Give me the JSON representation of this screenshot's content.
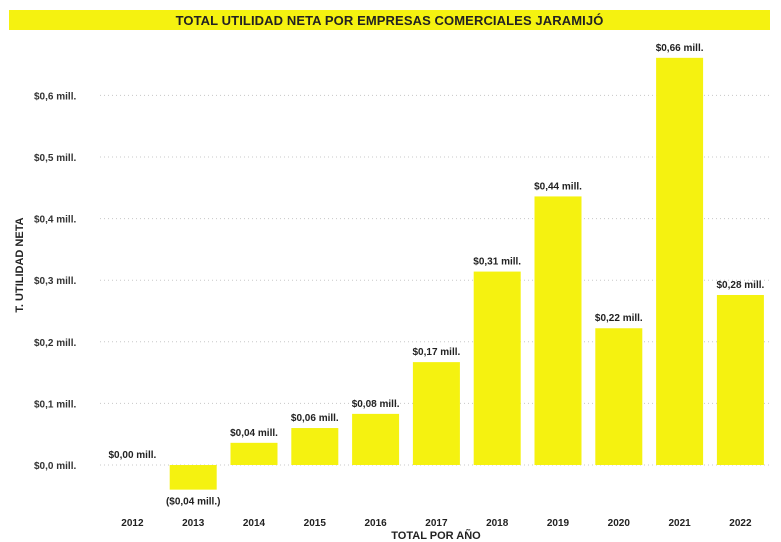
{
  "chart_data": {
    "type": "bar",
    "title": "TOTAL UTILIDAD NETA POR EMPRESAS COMERCIALES JARAMIJÓ",
    "xlabel": "TOTAL POR AÑO",
    "ylabel": "T. UTILIDAD NETA",
    "categories": [
      "2012",
      "2013",
      "2014",
      "2015",
      "2016",
      "2017",
      "2018",
      "2019",
      "2020",
      "2021",
      "2022"
    ],
    "values": [
      0.0,
      -0.04,
      0.036,
      0.06,
      0.083,
      0.167,
      0.314,
      0.436,
      0.222,
      0.661,
      0.276
    ],
    "data_labels": [
      "$0,00 mill.",
      "($0,04 mill.)",
      "$0,04 mill.",
      "$0,06 mill.",
      "$0,08 mill.",
      "$0,17 mill.",
      "$0,31 mill.",
      "$0,44 mill.",
      "$0,22 mill.",
      "$0,66 mill.",
      "$0,28 mill."
    ],
    "yticks": [
      0.0,
      0.1,
      0.2,
      0.3,
      0.4,
      0.5,
      0.6
    ],
    "ytick_labels": [
      "$0,0 mill.",
      "$0,1 mill.",
      "$0,2 mill.",
      "$0,3 mill.",
      "$0,4 mill.",
      "$0,5 mill.",
      "$0,6 mill."
    ],
    "ylim": [
      -0.05,
      0.68
    ],
    "grid": true,
    "bar_color": "#f5f210",
    "title_background": "#f5f210"
  }
}
